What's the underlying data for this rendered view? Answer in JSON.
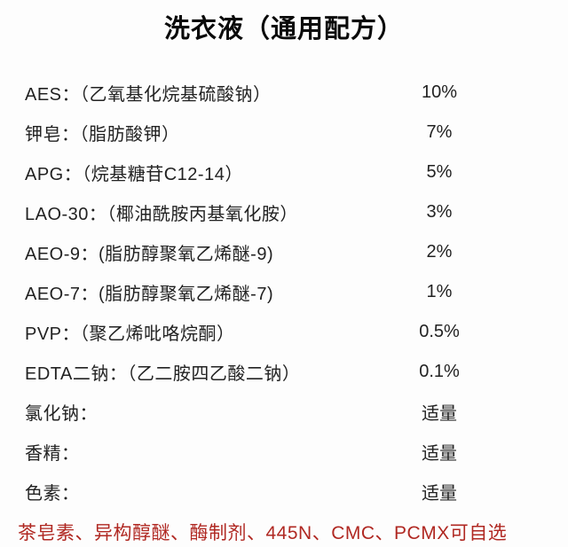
{
  "page": {
    "title": "洗衣液（通用配方）",
    "background_color": "#fdfdfd",
    "text_color": "#222222",
    "note_color": "#b02822"
  },
  "formula": {
    "rows": [
      {
        "label": "AES：（乙氧基化烷基硫酸钠）",
        "amount": "10%"
      },
      {
        "label": "钾皂：（脂肪酸钾）",
        "amount": "7%"
      },
      {
        "label": "APG：（烷基糖苷C12-14）",
        "amount": "5%"
      },
      {
        "label": "LAO-30：（椰油酰胺丙基氧化胺）",
        "amount": "3%"
      },
      {
        "label": "AEO-9：(脂肪醇聚氧乙烯醚-9)",
        "amount": "2%"
      },
      {
        "label": "AEO-7：(脂肪醇聚氧乙烯醚-7)",
        "amount": "1%"
      },
      {
        "label": "PVP：（聚乙烯吡咯烷酮）",
        "amount": "0.5%"
      },
      {
        "label": "EDTA二钠：（乙二胺四乙酸二钠）",
        "amount": "0.1%"
      },
      {
        "label": "氯化钠：",
        "amount": "适量"
      },
      {
        "label": "香精：",
        "amount": "适量"
      },
      {
        "label": "色素：",
        "amount": "适量"
      }
    ],
    "note": "茶皂素、异构醇醚、酶制剂、445N、CMC、PCMX可自选"
  }
}
